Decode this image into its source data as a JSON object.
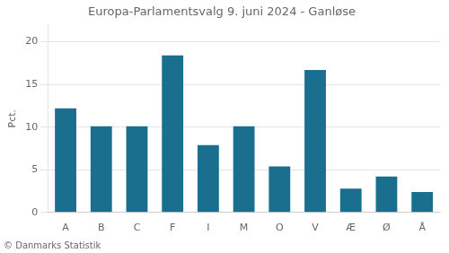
{
  "chart_data": {
    "type": "bar",
    "title": "Europa-Parlamentsvalg 9. juni 2024 - Ganløse",
    "categories": [
      "A",
      "B",
      "C",
      "F",
      "I",
      "M",
      "O",
      "V",
      "Æ",
      "Ø",
      "Å"
    ],
    "values": [
      12.2,
      10.1,
      10.1,
      18.4,
      7.9,
      10.1,
      5.4,
      16.7,
      2.8,
      4.2,
      2.4
    ],
    "color": "#1a6e8e",
    "ylabel": "Pct.",
    "annotation": "© Danmarks Statistik",
    "ylim": [
      0,
      22
    ],
    "yticks": [
      0,
      5,
      10,
      15,
      20
    ],
    "grid": true
  }
}
